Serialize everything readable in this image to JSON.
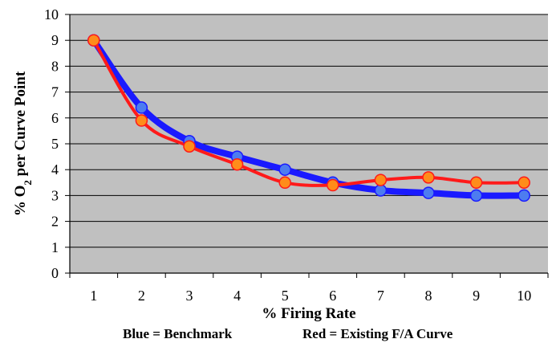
{
  "chart_data": {
    "type": "line",
    "title": "",
    "xlabel": "% Firing Rate",
    "ylabel": "% O2 per Curve Point",
    "ylabel_main": "% O",
    "ylabel_sub": "2",
    "ylabel_rest": " per Curve Point",
    "x": [
      1,
      2,
      3,
      4,
      5,
      6,
      7,
      8,
      9,
      10
    ],
    "xlim": [
      0.5,
      10.5
    ],
    "ylim": [
      0,
      10
    ],
    "yticks": [
      0,
      1,
      2,
      3,
      4,
      5,
      6,
      7,
      8,
      9,
      10
    ],
    "xticks": [
      1,
      2,
      3,
      4,
      5,
      6,
      7,
      8,
      9,
      10
    ],
    "grid": "horizontal",
    "background": "#c0c0c0",
    "series": [
      {
        "name": "Benchmark",
        "color": "#1a1aff",
        "marker_color": "#4d7cf0",
        "values": [
          9.0,
          6.4,
          5.1,
          4.5,
          4.0,
          3.5,
          3.2,
          3.1,
          3.0,
          3.0
        ]
      },
      {
        "name": "Existing F/A Curve",
        "color": "#ff1a1a",
        "marker_color": "#ff8c1a",
        "values": [
          9.0,
          5.9,
          4.9,
          4.2,
          3.5,
          3.4,
          3.6,
          3.7,
          3.5,
          3.5
        ]
      }
    ],
    "legend": {
      "placement": "bottom",
      "blue_text": "Blue = Benchmark",
      "red_text": "Red = Existing F/A Curve"
    }
  }
}
